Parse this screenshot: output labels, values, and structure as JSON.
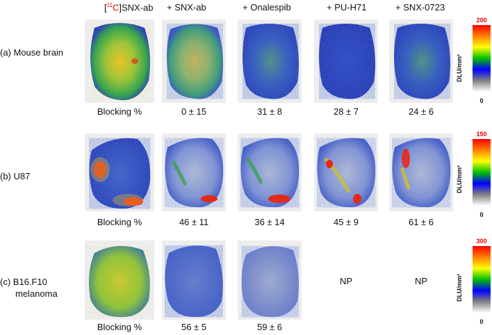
{
  "columns": [
    {
      "prefix": "[",
      "iso": "11",
      "isoel": "C",
      "rest": "]SNX-ab"
    },
    {
      "label": "+ SNX-ab"
    },
    {
      "label": "+ Onalespib"
    },
    {
      "label": "+ PU-H71"
    },
    {
      "label": "+ SNX-0723"
    }
  ],
  "rows": [
    {
      "label_line1": "(a)  Mouse brain",
      "label_line2": "",
      "values": [
        "Blocking %",
        "0 ± 15",
        "31 ± 8",
        "28 ± 7",
        "24 ± 6"
      ],
      "colorbar": {
        "max": "200",
        "min": "0",
        "unit": "DLU/mm²"
      }
    },
    {
      "label_line1": "(b)  U87",
      "label_line2": "",
      "values": [
        "Blocking %",
        "46 ± 11",
        "36 ± 14",
        "45 ± 9",
        "61 ± 6"
      ],
      "colorbar": {
        "max": "150",
        "min": "0",
        "unit": "DLU/mm²"
      }
    },
    {
      "label_line1": "(c)  B16.F10",
      "label_line2": "melanoma",
      "values": [
        "Blocking %",
        "56 ± 5",
        "59 ± 6",
        "",
        ""
      ],
      "not_performed": [
        "NP",
        "NP"
      ],
      "colorbar": {
        "max": "300",
        "min": "0",
        "unit": "DLU/mm²"
      }
    }
  ]
}
